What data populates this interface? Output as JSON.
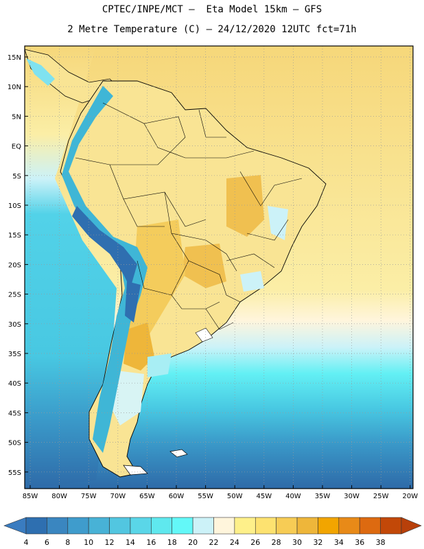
{
  "header": {
    "line1": "CPTEC/INPE/MCT –  Eta Model 15km – GFS",
    "line2": "2 Metre Temperature (C) – 24/12/2020 12UTC fct=71h"
  },
  "lat_labels": [
    "15N",
    "10N",
    "5N",
    "EQ",
    "5S",
    "10S",
    "15S",
    "20S",
    "25S",
    "30S",
    "35S",
    "40S",
    "45S",
    "50S",
    "55S"
  ],
  "lon_labels": [
    "85W",
    "80W",
    "75W",
    "70W",
    "65W",
    "60W",
    "55W",
    "50W",
    "45W",
    "40W",
    "35W",
    "30W",
    "25W",
    "20W"
  ],
  "colorbar": {
    "labels": [
      "4",
      "6",
      "8",
      "10",
      "12",
      "14",
      "16",
      "18",
      "20",
      "22",
      "24",
      "26",
      "28",
      "30",
      "32",
      "34",
      "36",
      "38"
    ],
    "colors": [
      "#2e6fb0",
      "#3a86c0",
      "#3f9ccc",
      "#48b2d6",
      "#52c6e0",
      "#5ad6e8",
      "#5fe8ee",
      "#63f8f8",
      "#ccf2f8",
      "#fff5dc",
      "#fef08a",
      "#fde270",
      "#f7cc55",
      "#eeb63a",
      "#f2a500",
      "#e88a18",
      "#dd6a10",
      "#c24808"
    ],
    "left_tip": "#3a7cc0",
    "right_tip": "#b8400a"
  },
  "map_colors": {
    "ocean_north": "#f6d77a",
    "ocean_mid": "#fbeea6",
    "land_warm": "#f9e494",
    "land_hot": "#f0c050",
    "andes": "#3fb6d6",
    "andes_cold": "#2f6fb0",
    "ocean_cool": "#a8eef4",
    "ocean_cold": "#48c8e2",
    "ocean_colder": "#3a98c8",
    "ocean_coldest": "#2e6aa8"
  }
}
